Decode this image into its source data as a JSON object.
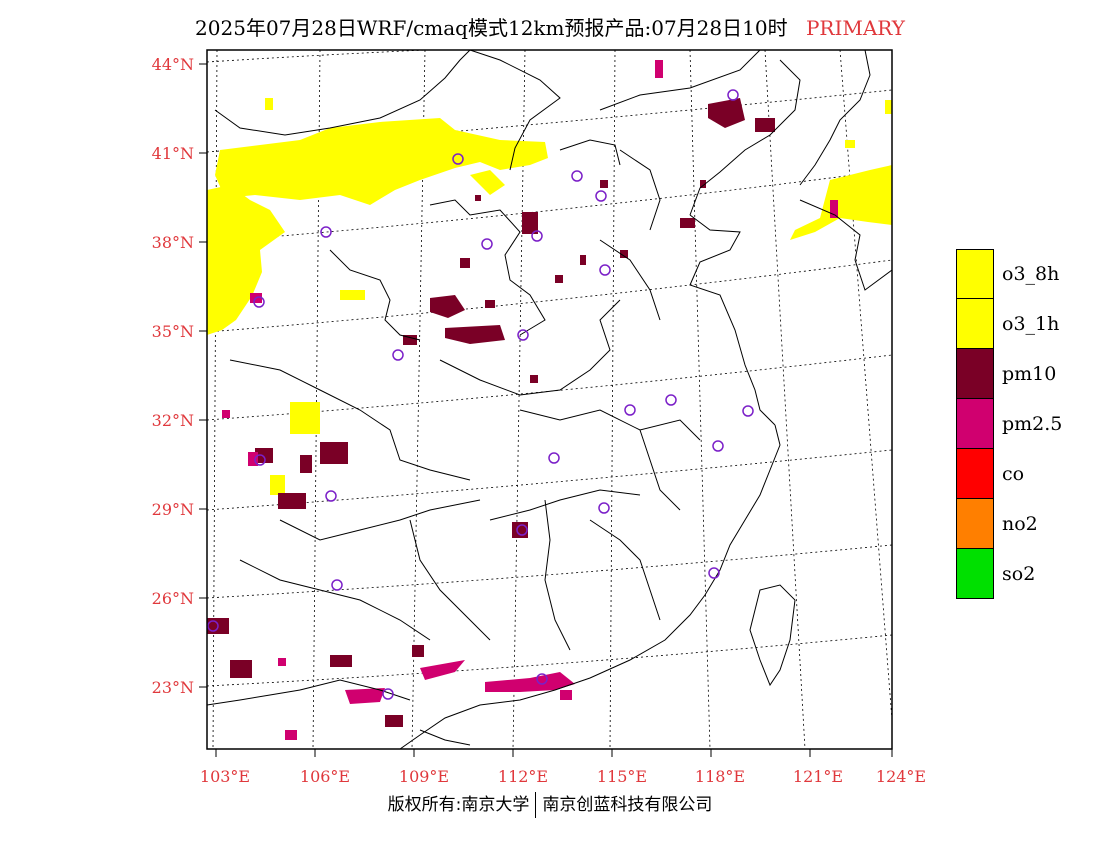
{
  "title": {
    "main": "2025年07月28日WRF/cmaq模式12km预报产品:07月28日10时",
    "tag": "PRIMARY",
    "tag_color": "#e0383c"
  },
  "map": {
    "lat_labels": [
      "44°N",
      "41°N",
      "38°N",
      "35°N",
      "32°N",
      "29°N",
      "26°N",
      "23°N"
    ],
    "lon_labels": [
      "103°E",
      "106°E",
      "109°E",
      "112°E",
      "115°E",
      "118°E",
      "121°E",
      "124°E"
    ],
    "label_color": "#e0383c",
    "station_marker_color": "#7b20c8"
  },
  "legend": {
    "items": [
      {
        "label": "o3_8h",
        "color": "#ffff00"
      },
      {
        "label": "o3_1h",
        "color": "#ffff00"
      },
      {
        "label": "pm10",
        "color": "#7a0026"
      },
      {
        "label": "pm2.5",
        "color": "#d0006f"
      },
      {
        "label": "co",
        "color": "#ff0000"
      },
      {
        "label": "no2",
        "color": "#ff7f00"
      },
      {
        "label": "so2",
        "color": "#00e000"
      }
    ]
  },
  "footer": {
    "left": "版权所有:南京大学",
    "right": "南京创蓝科技有限公司"
  }
}
